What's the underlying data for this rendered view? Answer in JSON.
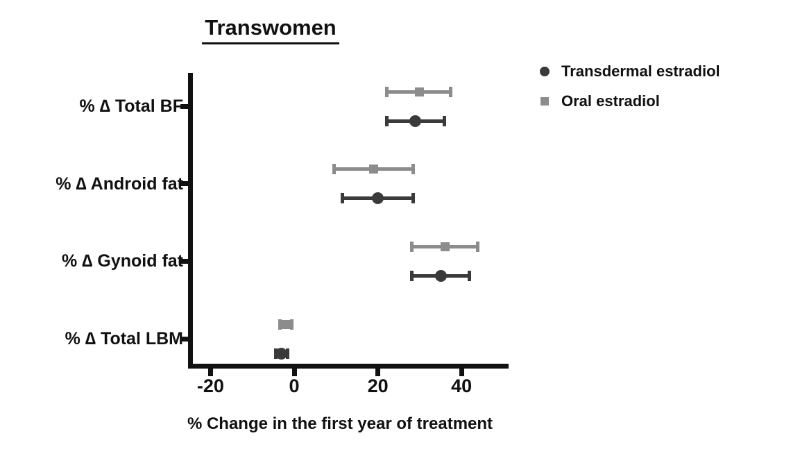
{
  "title": "Transwomen",
  "colors": {
    "axis": "#111111",
    "text": "#111111",
    "transdermal": "#3a3a3a",
    "oral": "#8c8c8c"
  },
  "legend": {
    "items": [
      {
        "label": "Transdermal estradiol",
        "marker": "circle-marker-icon",
        "color": "#3a3a3a"
      },
      {
        "label": "Oral estradiol",
        "marker": "square-marker-icon",
        "color": "#8c8c8c"
      }
    ]
  },
  "chart_data": {
    "type": "scatter",
    "subtype": "horizontal-point-range-forest-plot",
    "title": "Transwomen",
    "xlabel": "% Change in the first year of treatment",
    "ylabel": "",
    "xlim": [
      -25,
      51
    ],
    "xticks": [
      -20,
      0,
      20,
      40
    ],
    "grid": false,
    "legend_position": "top-right",
    "categories": [
      "% ∆ Total BF",
      "% ∆ Android fat",
      "% ∆ Gynoid fat",
      "% ∆ Total LBM"
    ],
    "series": [
      {
        "name": "Transdermal estradiol",
        "marker": "circle",
        "color": "#3a3a3a",
        "values": [
          29,
          20,
          35,
          -3
        ],
        "ci_low": [
          22,
          11.5,
          28,
          -4.5
        ],
        "ci_high": [
          36,
          28.5,
          42,
          -1.5
        ]
      },
      {
        "name": "Oral estradiol",
        "marker": "square",
        "color": "#8c8c8c",
        "values": [
          30,
          19,
          36,
          -2
        ],
        "ci_low": [
          22,
          9.5,
          28,
          -3.5
        ],
        "ci_high": [
          37.5,
          28.5,
          44,
          -0.5
        ]
      }
    ]
  }
}
